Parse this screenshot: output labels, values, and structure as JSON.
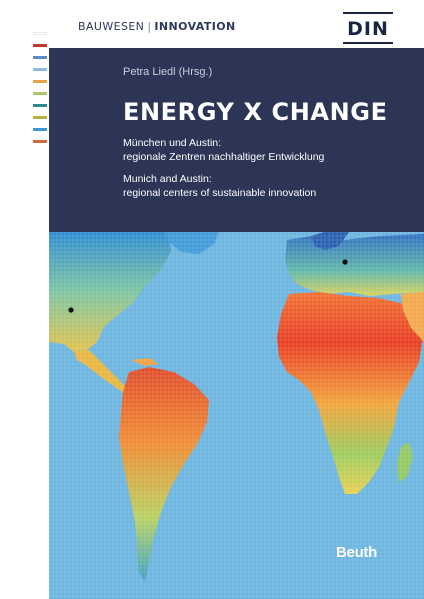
{
  "series": {
    "left": "BAUWESEN",
    "separator": "|",
    "right": "INNOVATION"
  },
  "publisher_logo": {
    "text": "DIN"
  },
  "editor": "Petra Liedl (Hrsg.)",
  "title": "ENERGY X CHANGE",
  "subtitle_de": {
    "line1": "München und Austin:",
    "line2": "regionale Zentren nachhaltiger Entwicklung"
  },
  "subtitle_en": {
    "line1": "Munich and Austin:",
    "line2": "regional centers of sustainable innovation"
  },
  "publisher": "Beuth",
  "stripe_colors": [
    "#ffffff",
    "#c0392b",
    "#5b8cc6",
    "#8fb9e0",
    "#e8a64c",
    "#a8c86a",
    "#2a8a8e",
    "#b8b040",
    "#3a9ad0",
    "#d06a3a"
  ],
  "colors": {
    "navy": "#2c3556",
    "ocean": "#6ab4e0",
    "text_dark": "#2e3a5c"
  },
  "map": {
    "markers": [
      "munich-marker",
      "austin-marker"
    ]
  }
}
